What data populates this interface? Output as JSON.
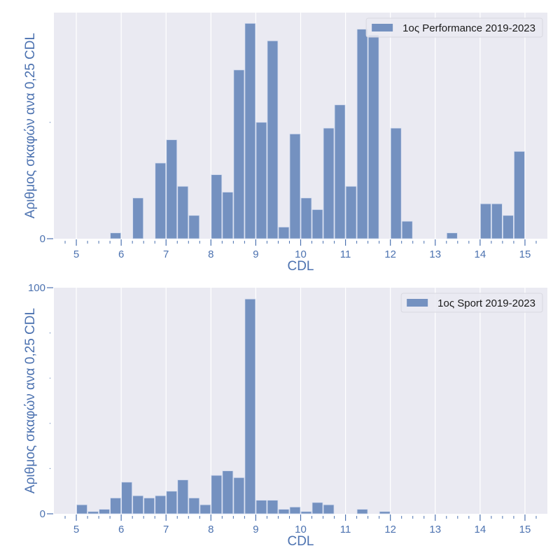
{
  "colors": {
    "bar": "#7491c0",
    "bar_edge": "#d6def0",
    "plot_bg": "#eaeaf2",
    "grid": "#ffffff",
    "axis_text": "#4c72b0",
    "legend_text": "#1a1a1a"
  },
  "chart_data": [
    {
      "type": "bar",
      "title": "",
      "legend": {
        "label": "1ος Performance 2019-2023",
        "placement": "top-right"
      },
      "xlabel": "CDL",
      "ylabel": "Αριθμος σκαφών ανα 0,25 CDL",
      "bin_width": 0.25,
      "xlim": [
        4.5,
        15.5
      ],
      "ylim": [
        0,
        38.85
      ],
      "x_ticks": [
        5,
        6,
        7,
        8,
        9,
        10,
        11,
        12,
        13,
        14,
        15
      ],
      "x_tick_labels": [
        "5",
        "6",
        "7",
        "8",
        "9",
        "10",
        "11",
        "12",
        "13",
        "14",
        "15"
      ],
      "y_ticks": [
        0,
        20
      ],
      "y_tick_labels": [
        "0",
        ""
      ],
      "grid": "vertical",
      "bins": [
        {
          "x": 5.75,
          "value": 1
        },
        {
          "x": 6.25,
          "value": 7
        },
        {
          "x": 6.75,
          "value": 13
        },
        {
          "x": 7.0,
          "value": 17
        },
        {
          "x": 7.25,
          "value": 9
        },
        {
          "x": 7.5,
          "value": 4
        },
        {
          "x": 8.0,
          "value": 11
        },
        {
          "x": 8.25,
          "value": 8
        },
        {
          "x": 8.5,
          "value": 29
        },
        {
          "x": 8.75,
          "value": 37
        },
        {
          "x": 9.0,
          "value": 20
        },
        {
          "x": 9.25,
          "value": 34
        },
        {
          "x": 9.5,
          "value": 2
        },
        {
          "x": 9.75,
          "value": 18
        },
        {
          "x": 10.0,
          "value": 7
        },
        {
          "x": 10.25,
          "value": 5
        },
        {
          "x": 10.5,
          "value": 19
        },
        {
          "x": 10.75,
          "value": 23
        },
        {
          "x": 11.0,
          "value": 9
        },
        {
          "x": 11.25,
          "value": 36
        },
        {
          "x": 11.5,
          "value": 35
        },
        {
          "x": 12.0,
          "value": 19
        },
        {
          "x": 12.25,
          "value": 3
        },
        {
          "x": 13.25,
          "value": 1
        },
        {
          "x": 14.0,
          "value": 6
        },
        {
          "x": 14.25,
          "value": 6
        },
        {
          "x": 14.5,
          "value": 4
        },
        {
          "x": 14.75,
          "value": 15
        }
      ]
    },
    {
      "type": "bar",
      "title": "",
      "legend": {
        "label": "1ος Sport 2019-2023",
        "placement": "top-right"
      },
      "xlabel": "CDL",
      "ylabel": "Αριθμος σκαφών ανα 0,25 CDL",
      "bin_width": 0.25,
      "xlim": [
        4.5,
        15.5
      ],
      "ylim": [
        0,
        100
      ],
      "x_ticks": [
        5,
        6,
        7,
        8,
        9,
        10,
        11,
        12,
        13,
        14,
        15
      ],
      "x_tick_labels": [
        "5",
        "6",
        "7",
        "8",
        "9",
        "10",
        "11",
        "12",
        "13",
        "14",
        "15"
      ],
      "y_ticks": [
        0,
        20,
        40,
        60,
        80,
        100
      ],
      "y_tick_labels": [
        "0",
        "",
        "",
        "",
        "",
        "100"
      ],
      "grid": "vertical",
      "bins": [
        {
          "x": 5.0,
          "value": 4
        },
        {
          "x": 5.25,
          "value": 1
        },
        {
          "x": 5.5,
          "value": 2
        },
        {
          "x": 5.75,
          "value": 7
        },
        {
          "x": 6.0,
          "value": 14
        },
        {
          "x": 6.25,
          "value": 8
        },
        {
          "x": 6.5,
          "value": 7
        },
        {
          "x": 6.75,
          "value": 8
        },
        {
          "x": 7.0,
          "value": 10
        },
        {
          "x": 7.25,
          "value": 15
        },
        {
          "x": 7.5,
          "value": 7
        },
        {
          "x": 7.75,
          "value": 4
        },
        {
          "x": 8.0,
          "value": 17
        },
        {
          "x": 8.25,
          "value": 19
        },
        {
          "x": 8.5,
          "value": 16
        },
        {
          "x": 8.75,
          "value": 95
        },
        {
          "x": 9.0,
          "value": 6
        },
        {
          "x": 9.25,
          "value": 6
        },
        {
          "x": 9.5,
          "value": 2
        },
        {
          "x": 9.75,
          "value": 3
        },
        {
          "x": 10.0,
          "value": 1
        },
        {
          "x": 10.25,
          "value": 5
        },
        {
          "x": 10.5,
          "value": 4
        },
        {
          "x": 11.25,
          "value": 2
        },
        {
          "x": 11.75,
          "value": 1
        }
      ]
    }
  ]
}
